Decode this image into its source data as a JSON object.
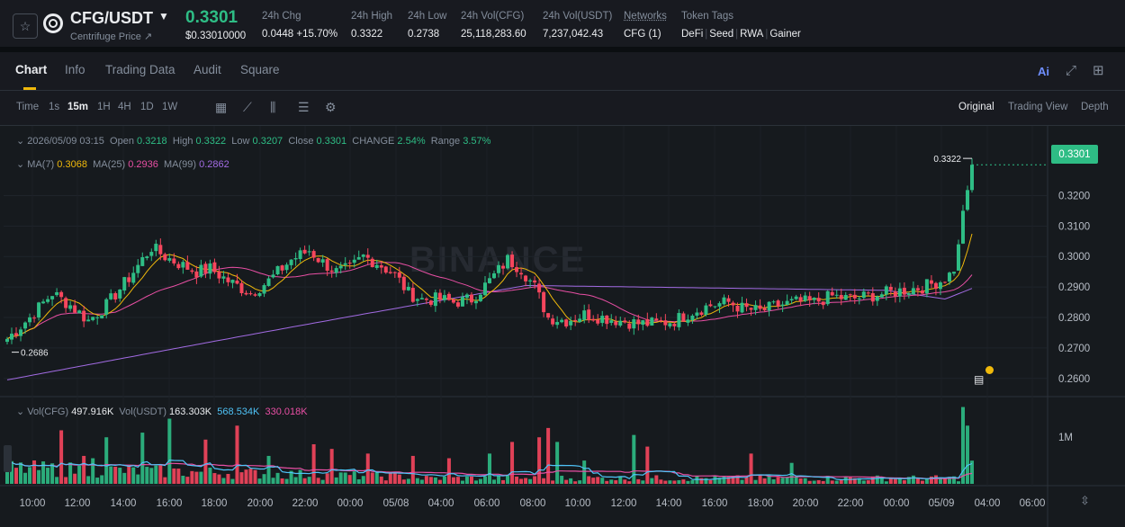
{
  "ticker": {
    "pair": "CFG/USDT",
    "name": "Centrifuge Price",
    "last_price": "0.3301",
    "usd_price": "$0.33010000",
    "change": {
      "label": "24h Chg",
      "value": "0.0448 +15.70%"
    },
    "high": {
      "label": "24h High",
      "value": "0.3322"
    },
    "low": {
      "label": "24h Low",
      "value": "0.2738"
    },
    "vol_base": {
      "label": "24h Vol(CFG)",
      "value": "25,118,283.60"
    },
    "vol_quote": {
      "label": "24h Vol(USDT)",
      "value": "7,237,042.43"
    },
    "networks": {
      "label": "Networks",
      "value": "CFG (1)"
    },
    "token_tags": {
      "label": "Token Tags",
      "tags": [
        "DeFi",
        "Seed",
        "RWA",
        "Gainer"
      ]
    }
  },
  "tabs": [
    "Chart",
    "Info",
    "Trading Data",
    "Audit",
    "Square"
  ],
  "toolbar": {
    "intervals": [
      "Time",
      "1s",
      "15m",
      "1H",
      "4H",
      "1D",
      "1W"
    ],
    "active_interval": "15m",
    "views": [
      "Original",
      "Trading View",
      "Depth"
    ],
    "active_view": "Original",
    "ai_label": "Ai"
  },
  "ohlc_legend": {
    "datetime": "2026/05/09 03:15",
    "open_label": "Open",
    "open": "0.3218",
    "high_label": "High",
    "high": "0.3322",
    "low_label": "Low",
    "low": "0.3207",
    "close_label": "Close",
    "close": "0.3301",
    "change_label": "CHANGE",
    "change": "2.54%",
    "range_label": "Range",
    "range": "3.57%"
  },
  "ma_legend": {
    "ma7_label": "MA(7)",
    "ma7": "0.3068",
    "ma25_label": "MA(25)",
    "ma25": "0.2936",
    "ma99_label": "MA(99)",
    "ma99": "0.2862"
  },
  "vol_legend": {
    "vol_cfg_label": "Vol(CFG)",
    "vol_cfg": "497.916K",
    "vol_usdt_label": "Vol(USDT)",
    "vol_usdt": "163.303K",
    "ma1": "568.534K",
    "ma2": "330.018K"
  },
  "watermark": "BINANCE",
  "price_tag": "0.3301",
  "max_label": "0.3322",
  "min_label": "0.2686",
  "colors": {
    "up": "#2ebd85",
    "down": "#f6465d",
    "ma7": "#f0b90b",
    "ma25": "#e84fa4",
    "ma99": "#a26be3",
    "vol_ma1": "#4fc3f7",
    "vol_ma2": "#e84fa4",
    "accent": "#f0b90b"
  },
  "chart_data": {
    "type": "candlestick",
    "interval": "15m",
    "y_ticks": [
      "0.3200",
      "0.3100",
      "0.3000",
      "0.2900",
      "0.2800",
      "0.2700",
      "0.2600"
    ],
    "y_range": [
      0.2555,
      0.3405
    ],
    "x_ticks": [
      "10:00",
      "12:00",
      "14:00",
      "16:00",
      "18:00",
      "20:00",
      "22:00",
      "00:00",
      "05/08",
      "04:00",
      "06:00",
      "08:00",
      "10:00",
      "12:00",
      "14:00",
      "16:00",
      "18:00",
      "20:00",
      "22:00",
      "00:00",
      "05/09",
      "04:00",
      "06:00"
    ],
    "vol_ticks": [
      "1M"
    ],
    "vol_max": 1700000,
    "keypoints": [
      [
        0,
        0.273
      ],
      [
        5,
        0.28
      ],
      [
        10,
        0.288
      ],
      [
        14,
        0.284
      ],
      [
        18,
        0.279
      ],
      [
        22,
        0.284
      ],
      [
        27,
        0.293
      ],
      [
        32,
        0.303
      ],
      [
        35,
        0.3
      ],
      [
        39,
        0.297
      ],
      [
        42,
        0.295
      ],
      [
        45,
        0.296
      ],
      [
        49,
        0.292
      ],
      [
        54,
        0.288
      ],
      [
        58,
        0.292
      ],
      [
        63,
        0.299
      ],
      [
        67,
        0.302
      ],
      [
        70,
        0.298
      ],
      [
        73,
        0.295
      ],
      [
        76,
        0.296
      ],
      [
        79,
        0.3
      ],
      [
        82,
        0.298
      ],
      [
        86,
        0.294
      ],
      [
        89,
        0.288
      ],
      [
        92,
        0.286
      ],
      [
        96,
        0.286
      ],
      [
        99,
        0.285
      ],
      [
        103,
        0.286
      ],
      [
        107,
        0.292
      ],
      [
        111,
        0.299
      ],
      [
        114,
        0.296
      ],
      [
        117,
        0.29
      ],
      [
        120,
        0.28
      ],
      [
        124,
        0.279
      ],
      [
        128,
        0.281
      ],
      [
        132,
        0.28
      ],
      [
        136,
        0.279
      ],
      [
        140,
        0.278
      ],
      [
        144,
        0.278
      ],
      [
        148,
        0.279
      ],
      [
        152,
        0.282
      ],
      [
        156,
        0.284
      ],
      [
        160,
        0.285
      ],
      [
        163,
        0.283
      ],
      [
        167,
        0.282
      ],
      [
        171,
        0.284
      ],
      [
        175,
        0.285
      ],
      [
        179,
        0.285
      ],
      [
        183,
        0.287
      ],
      [
        187,
        0.286
      ],
      [
        191,
        0.287
      ],
      [
        195,
        0.288
      ],
      [
        199,
        0.289
      ],
      [
        203,
        0.29
      ],
      [
        207,
        0.292
      ],
      [
        210,
        0.295
      ],
      [
        211,
        0.304
      ],
      [
        212,
        0.315
      ],
      [
        213,
        0.3218
      ],
      [
        214,
        0.3301
      ]
    ],
    "volume_peaks": [
      [
        12,
        1150000
      ],
      [
        17,
        600000
      ],
      [
        19,
        550000
      ],
      [
        22,
        1000000
      ],
      [
        30,
        1100000
      ],
      [
        36,
        1400000
      ],
      [
        44,
        950000
      ],
      [
        51,
        1250000
      ],
      [
        58,
        600000
      ],
      [
        68,
        850000
      ],
      [
        72,
        750000
      ],
      [
        80,
        650000
      ],
      [
        90,
        600000
      ],
      [
        98,
        550000
      ],
      [
        107,
        650000
      ],
      [
        112,
        900000
      ],
      [
        118,
        1000000
      ],
      [
        120,
        1200000
      ],
      [
        122,
        900000
      ],
      [
        128,
        500000
      ],
      [
        139,
        1050000
      ],
      [
        142,
        800000
      ],
      [
        165,
        650000
      ],
      [
        174,
        450000
      ],
      [
        212,
        1650000
      ],
      [
        213,
        1250000
      ],
      [
        214,
        497916
      ]
    ]
  }
}
